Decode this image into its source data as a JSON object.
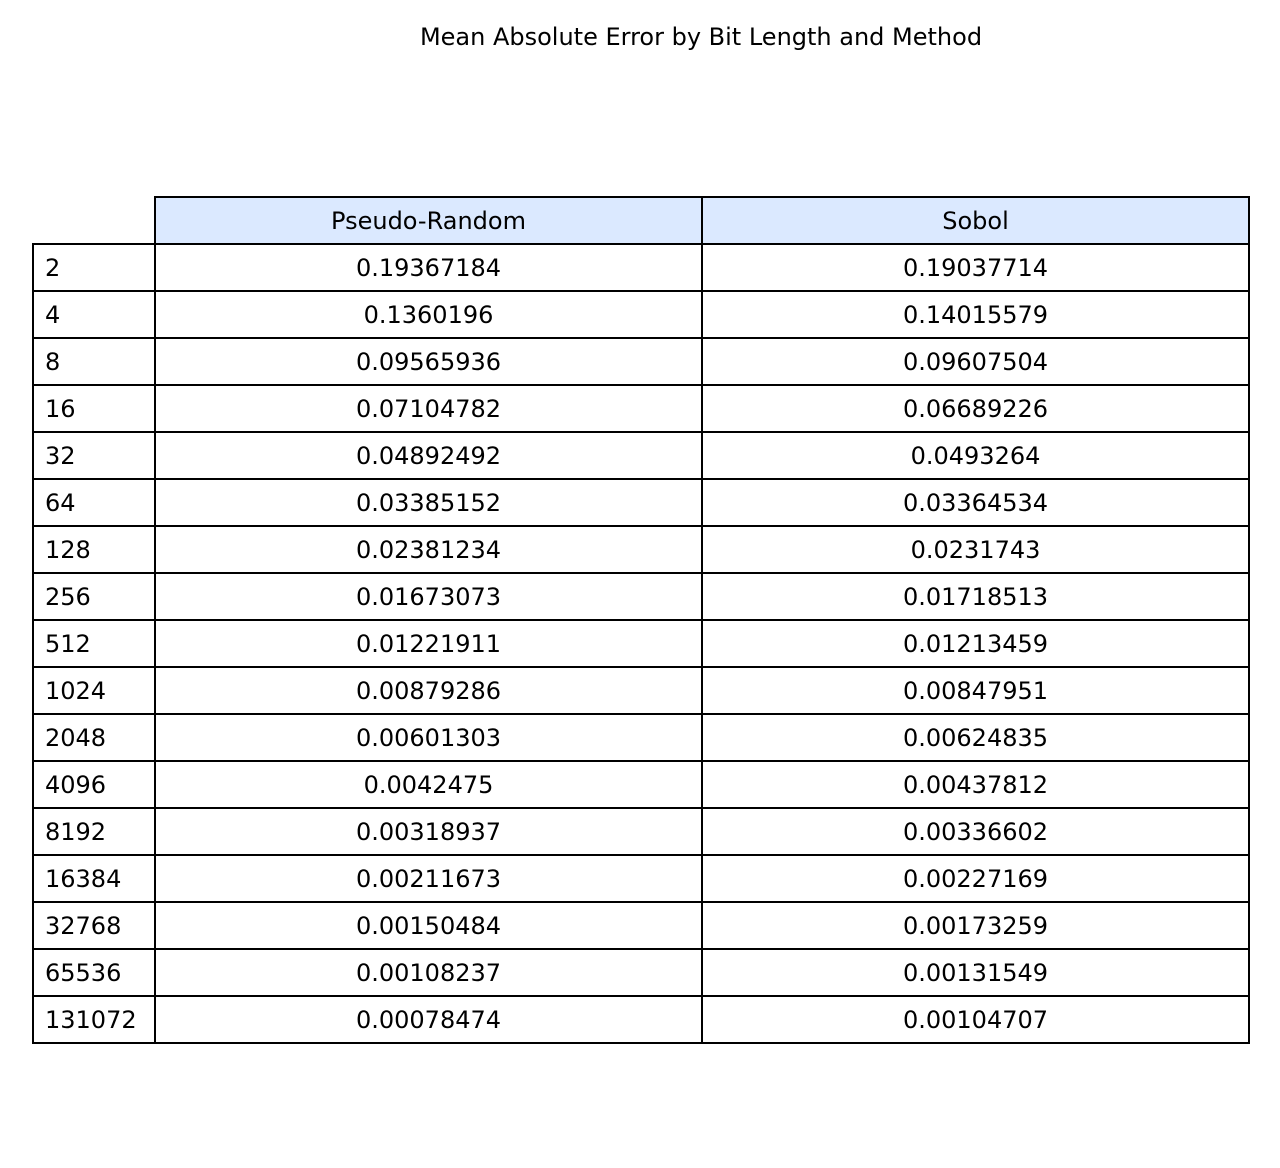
{
  "chart_data": {
    "type": "table",
    "title": "Mean Absolute Error by Bit Length and Method",
    "columns": [
      "Pseudo-Random",
      "Sobol"
    ],
    "header_color": "#dbe9ff",
    "rows": [
      {
        "label": "2",
        "values": [
          "0.19367184",
          "0.19037714"
        ]
      },
      {
        "label": "4",
        "values": [
          "0.1360196",
          "0.14015579"
        ]
      },
      {
        "label": "8",
        "values": [
          "0.09565936",
          "0.09607504"
        ]
      },
      {
        "label": "16",
        "values": [
          "0.07104782",
          "0.06689226"
        ]
      },
      {
        "label": "32",
        "values": [
          "0.04892492",
          "0.0493264"
        ]
      },
      {
        "label": "64",
        "values": [
          "0.03385152",
          "0.03364534"
        ]
      },
      {
        "label": "128",
        "values": [
          "0.02381234",
          "0.0231743"
        ]
      },
      {
        "label": "256",
        "values": [
          "0.01673073",
          "0.01718513"
        ]
      },
      {
        "label": "512",
        "values": [
          "0.01221911",
          "0.01213459"
        ]
      },
      {
        "label": "1024",
        "values": [
          "0.00879286",
          "0.00847951"
        ]
      },
      {
        "label": "2048",
        "values": [
          "0.00601303",
          "0.00624835"
        ]
      },
      {
        "label": "4096",
        "values": [
          "0.0042475",
          "0.00437812"
        ]
      },
      {
        "label": "8192",
        "values": [
          "0.00318937",
          "0.00336602"
        ]
      },
      {
        "label": "16384",
        "values": [
          "0.00211673",
          "0.00227169"
        ]
      },
      {
        "label": "32768",
        "values": [
          "0.00150484",
          "0.00173259"
        ]
      },
      {
        "label": "65536",
        "values": [
          "0.00108237",
          "0.00131549"
        ]
      },
      {
        "label": "131072",
        "values": [
          "0.00078474",
          "0.00104707"
        ]
      }
    ]
  }
}
